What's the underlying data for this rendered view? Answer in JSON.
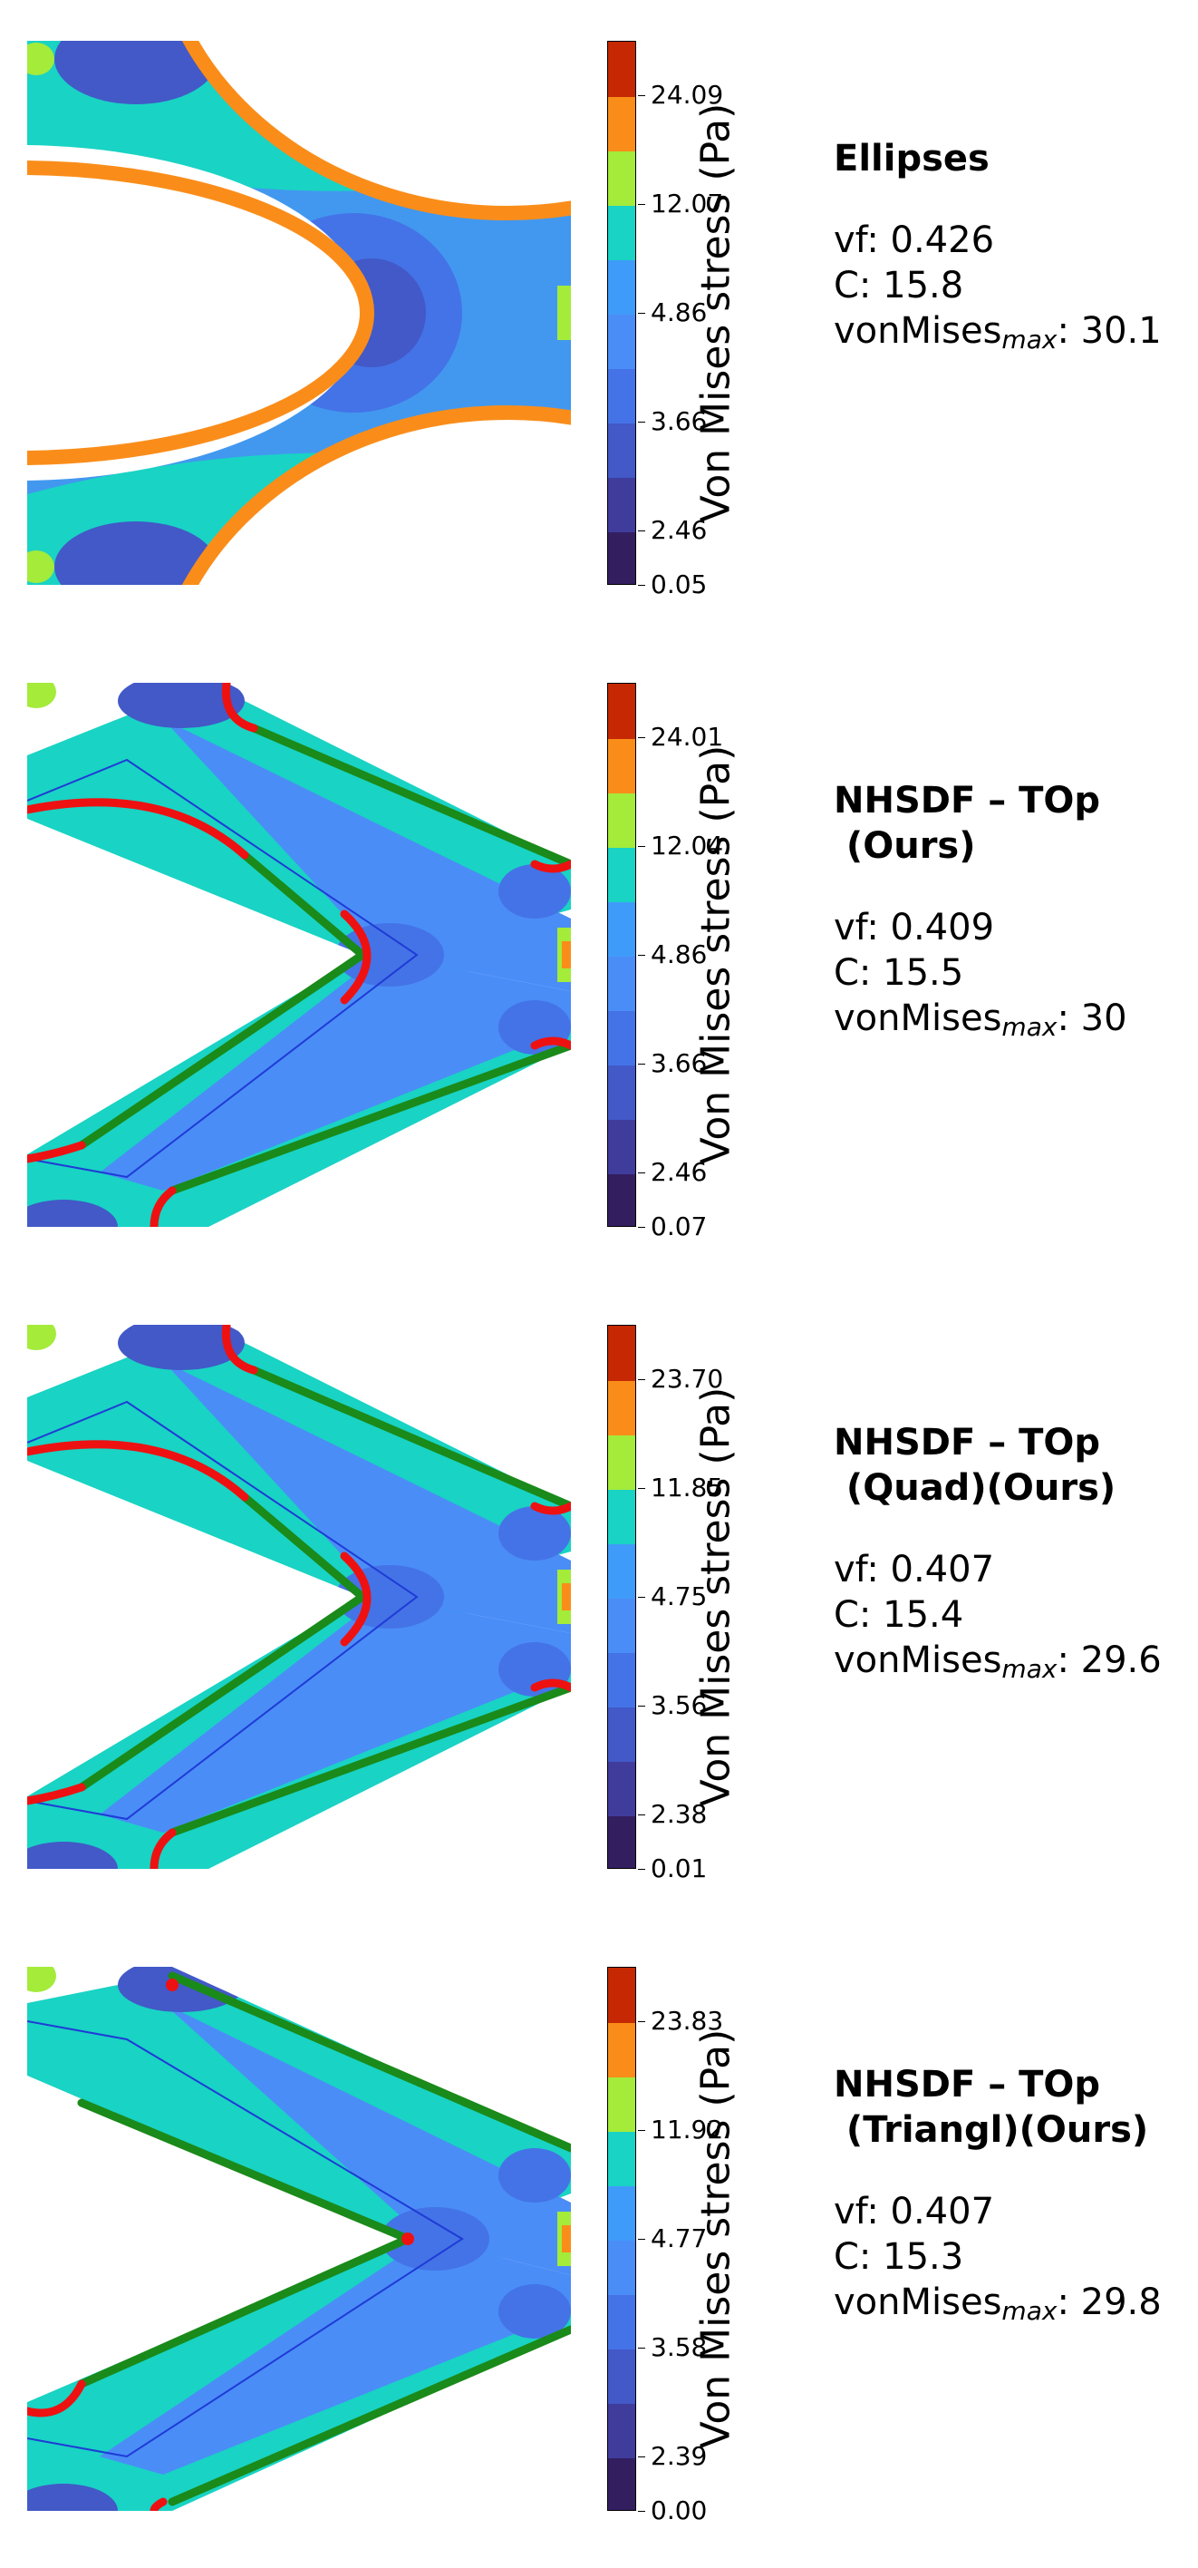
{
  "colorbar_label": "Von Mises stress (Pa)",
  "colors": [
    "#331e60",
    "#3f3c9c",
    "#4259c7",
    "#4473e7",
    "#4a8df7",
    "#3f9bf9",
    "#19d3c4",
    "#a4eb3a",
    "#fa8d1a",
    "#c52802"
  ],
  "colors_meaning": "colorbar bands bottom to top (turbo-like colormap)",
  "stat_labels": {
    "vf": "vf: ",
    "c": "C: ",
    "vm": "vonMises",
    "vm_sub": "max",
    "vm_sep": ": "
  },
  "panels": [
    {
      "title": "Ellipses",
      "vf": "0.426",
      "C": "15.8",
      "vonmises_max": "30.1",
      "ticks": [
        "24.09",
        "12.07",
        "4.86",
        "3.66",
        "2.46",
        "0.05"
      ],
      "structure": "ellipse"
    },
    {
      "title": "NHSDF – TOp\n (Ours)",
      "vf": "0.409",
      "C": "15.5",
      "vonmises_max": "30",
      "ticks": [
        "24.01",
        "12.04",
        "4.86",
        "3.66",
        "2.46",
        "0.07"
      ],
      "structure": "chevron"
    },
    {
      "title": "NHSDF – TOp\n (Quad)(Ours)",
      "vf": "0.407",
      "C": "15.4",
      "vonmises_max": "29.6",
      "ticks": [
        "23.70",
        "11.85",
        "4.75",
        "3.56",
        "2.38",
        "0.01"
      ],
      "structure": "chevron"
    },
    {
      "title": "NHSDF – TOp\n (Triangl)(Ours)",
      "vf": "0.407",
      "C": "15.3",
      "vonmises_max": "29.8",
      "ticks": [
        "23.83",
        "11.92",
        "4.77",
        "3.58",
        "2.39",
        "0.00"
      ],
      "structure": "triangle"
    }
  ]
}
